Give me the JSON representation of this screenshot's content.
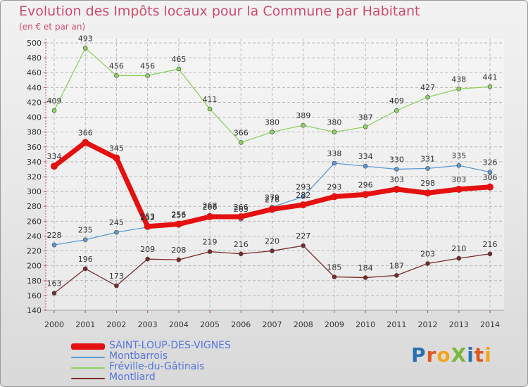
{
  "title": "Evolution des Impôts locaux pour la Commune par Habitant",
  "subtitle": "(en € et par an)",
  "logo": {
    "text": "ProXiti",
    "letters": [
      {
        "ch": "P",
        "color": "#2b6fb3"
      },
      {
        "ch": "r",
        "color": "#e0561d"
      },
      {
        "ch": "o",
        "color": "#f2a51c"
      },
      {
        "ch": "X",
        "color": "#7ab83a"
      },
      {
        "ch": "i",
        "color": "#2b6fb3"
      },
      {
        "ch": "t",
        "color": "#e0561d"
      },
      {
        "ch": "i",
        "color": "#f2a51c"
      }
    ]
  },
  "chart_data": {
    "type": "line",
    "title": "Evolution des Impôts locaux pour la Commune par Habitant",
    "subtitle": "(en € et par an)",
    "x": [
      "2000",
      "2001",
      "2002",
      "2003",
      "2004",
      "2005",
      "2006",
      "2007",
      "2008",
      "2009",
      "2010",
      "2011",
      "2012",
      "2013",
      "2014"
    ],
    "ylim": [
      140,
      500
    ],
    "yticks": [
      140,
      160,
      180,
      200,
      220,
      240,
      260,
      280,
      300,
      320,
      340,
      360,
      380,
      400,
      420,
      440,
      460,
      480,
      500
    ],
    "grid": true,
    "legend_position": "bottom-left",
    "series": [
      {
        "name": "SAINT-LOUP-DES-VIGNES",
        "color": "#e51010",
        "width": 7,
        "marker": 5,
        "values": [
          334,
          366,
          345,
          253,
          256,
          266,
          266,
          276,
          282,
          293,
          296,
          303,
          298,
          303,
          306
        ]
      },
      {
        "name": "Montbarrois",
        "color": "#5b9bd5",
        "width": 1.3,
        "marker": 3,
        "values": [
          228,
          235,
          245,
          252,
          255,
          268,
          263,
          279,
          293,
          338,
          334,
          330,
          331,
          335,
          326
        ]
      },
      {
        "name": "Fréville-du-Gâtinais",
        "color": "#8dd35f",
        "width": 1.3,
        "marker": 3,
        "values": [
          409,
          493,
          456,
          456,
          465,
          411,
          366,
          380,
          389,
          380,
          387,
          409,
          427,
          438,
          441
        ]
      },
      {
        "name": "Montliard",
        "color": "#7a2a2a",
        "width": 1.3,
        "marker": 3,
        "values": [
          163,
          196,
          173,
          209,
          208,
          219,
          216,
          220,
          227,
          185,
          184,
          187,
          203,
          210,
          216
        ]
      }
    ]
  }
}
